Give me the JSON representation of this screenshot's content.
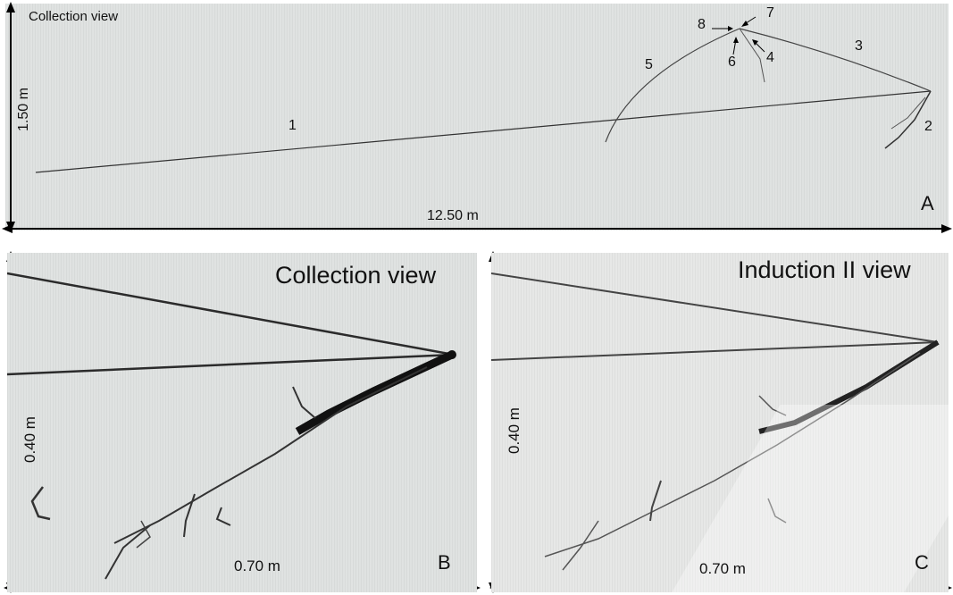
{
  "panel_a": {
    "title": "Collection view",
    "height_label": "1.50 m",
    "width_label": "12.50 m",
    "panel_letter": "A",
    "track_labels": [
      "1",
      "2",
      "3",
      "4",
      "5",
      "6",
      "7",
      "8"
    ]
  },
  "panel_b": {
    "title": "Collection  view",
    "height_label": "0.40 m",
    "width_label": "0.70 m",
    "panel_letter": "B"
  },
  "panel_c": {
    "title": "Induction II  view",
    "height_label": "0.40 m",
    "width_label": "0.70 m",
    "panel_letter": "C"
  },
  "colors": {
    "background_gray": "#dfe2e1",
    "track": "#2b2b2b",
    "text": "#111111"
  }
}
